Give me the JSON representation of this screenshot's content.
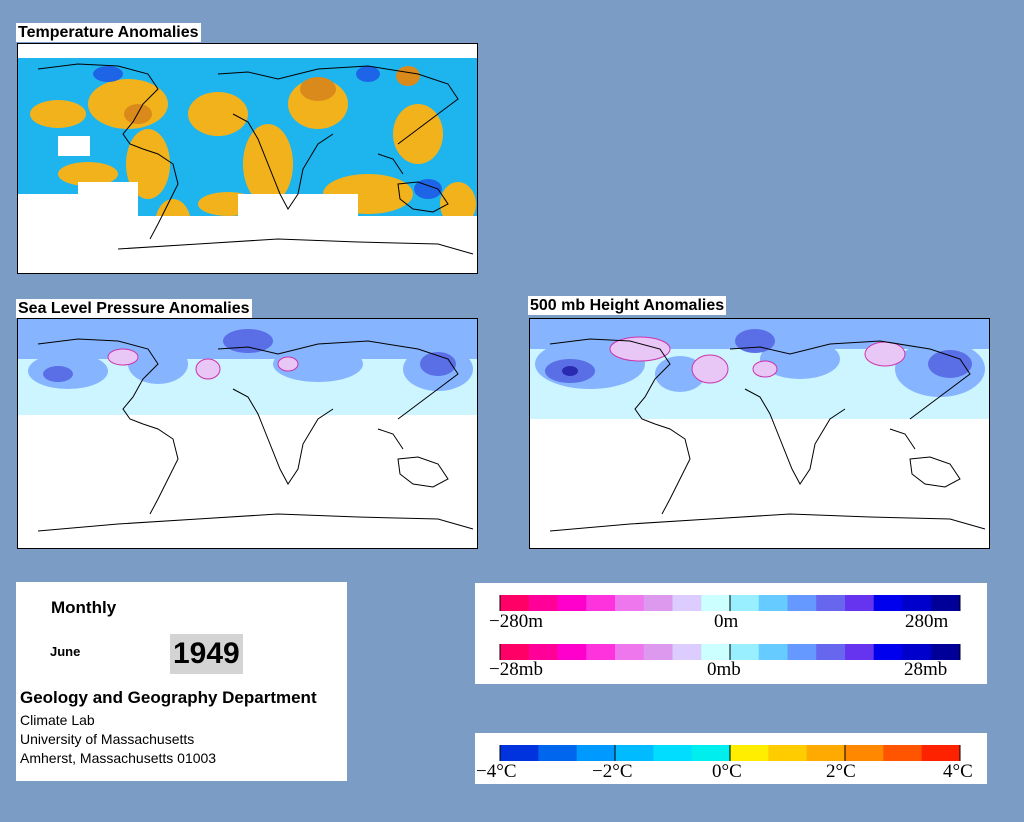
{
  "maps": {
    "temperature": {
      "title": "Temperature Anomalies"
    },
    "slp": {
      "title": "Sea Level Pressure Anomalies"
    },
    "height500": {
      "title": "500 mb Height Anomalies"
    }
  },
  "info": {
    "period": "Monthly",
    "month": "June",
    "year": "1949",
    "department": "Geology and Geography Department",
    "lab": "Climate Lab",
    "university": "University of Massachusetts",
    "address": "Amherst, Massachusetts 01003"
  },
  "legends": {
    "height": {
      "min_label": "−280m",
      "mid_label": "0m",
      "max_label": "280m"
    },
    "pressure": {
      "min_label": "−28mb",
      "mid_label": "0mb",
      "max_label": "28mb"
    },
    "anomaly_colors": [
      "#ff0066",
      "#ff0099",
      "#ff00cc",
      "#ff33dd",
      "#ee77ee",
      "#dd99ee",
      "#ddccff",
      "#ccffff",
      "#99eeff",
      "#66ccff",
      "#6699ff",
      "#6666ee",
      "#6633ee",
      "#0000ee",
      "#0000cc",
      "#000099"
    ],
    "temperature": {
      "labels": [
        "−4°C",
        "−2°C",
        "0°C",
        "2°C",
        "4°C"
      ],
      "colors": [
        "#0033dd",
        "#0066ee",
        "#0099ff",
        "#00bbff",
        "#00ddff",
        "#00eeee",
        "#ffee00",
        "#ffcc00",
        "#ffaa00",
        "#ff8800",
        "#ff5500",
        "#ff2200"
      ]
    }
  },
  "colors": {
    "background": "#7b9cc4",
    "temp_warm": "#f2b21c",
    "temp_cool": "#1eb4ee",
    "temp_cold": "#1e64e6",
    "pressure_light": "#ccf5ff",
    "pressure_mid": "#86b4ff",
    "pressure_deep": "#5a6ee6",
    "pressure_pink": "#e8c6f5"
  }
}
